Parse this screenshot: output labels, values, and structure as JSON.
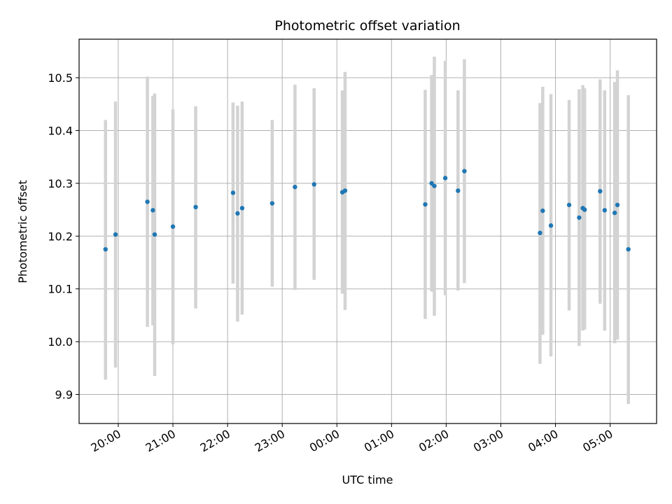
{
  "chart_data": {
    "type": "scatter",
    "title": "Photometric offset variation",
    "xlabel": "UTC time",
    "ylabel": "Photometric offset",
    "x_is_time": true,
    "xlim": [
      "19:17",
      "05:51"
    ],
    "ylim": [
      9.845,
      10.573
    ],
    "x_ticks": [
      "20:00",
      "21:00",
      "22:00",
      "23:00",
      "00:00",
      "01:00",
      "02:00",
      "03:00",
      "04:00",
      "05:00"
    ],
    "y_ticks": [
      9.9,
      10.0,
      10.1,
      10.2,
      10.3,
      10.4,
      10.5
    ],
    "y_tick_labels": [
      "9.9",
      "10.0",
      "10.1",
      "10.2",
      "10.3",
      "10.4",
      "10.5"
    ],
    "grid": true,
    "point_color": "#1f77b4",
    "errorbar_color": "#d3d3d3",
    "points": [
      {
        "x": "19:46",
        "y": 10.175,
        "y_low": 9.928,
        "y_high": 10.42
      },
      {
        "x": "19:57",
        "y": 10.203,
        "y_low": 9.951,
        "y_high": 10.455
      },
      {
        "x": "20:32",
        "y": 10.265,
        "y_low": 10.028,
        "y_high": 10.502
      },
      {
        "x": "20:38",
        "y": 10.249,
        "y_low": 10.031,
        "y_high": 10.466
      },
      {
        "x": "20:40",
        "y": 10.203,
        "y_low": 9.935,
        "y_high": 10.47
      },
      {
        "x": "21:00",
        "y": 10.218,
        "y_low": 9.995,
        "y_high": 10.44
      },
      {
        "x": "21:25",
        "y": 10.255,
        "y_low": 10.063,
        "y_high": 10.446
      },
      {
        "x": "22:06",
        "y": 10.282,
        "y_low": 10.11,
        "y_high": 10.453
      },
      {
        "x": "22:11",
        "y": 10.243,
        "y_low": 10.038,
        "y_high": 10.447
      },
      {
        "x": "22:16",
        "y": 10.253,
        "y_low": 10.051,
        "y_high": 10.455
      },
      {
        "x": "22:49",
        "y": 10.262,
        "y_low": 10.104,
        "y_high": 10.42
      },
      {
        "x": "23:14",
        "y": 10.293,
        "y_low": 10.098,
        "y_high": 10.487
      },
      {
        "x": "23:35",
        "y": 10.298,
        "y_low": 10.117,
        "y_high": 10.48
      },
      {
        "x": "00:06",
        "y": 10.283,
        "y_low": 10.091,
        "y_high": 10.476
      },
      {
        "x": "00:09",
        "y": 10.286,
        "y_low": 10.06,
        "y_high": 10.511
      },
      {
        "x": "01:37",
        "y": 10.26,
        "y_low": 10.043,
        "y_high": 10.477
      },
      {
        "x": "01:44",
        "y": 10.3,
        "y_low": 10.095,
        "y_high": 10.505
      },
      {
        "x": "01:47",
        "y": 10.295,
        "y_low": 10.049,
        "y_high": 10.54
      },
      {
        "x": "01:59",
        "y": 10.31,
        "y_low": 10.088,
        "y_high": 10.532
      },
      {
        "x": "02:13",
        "y": 10.286,
        "y_low": 10.097,
        "y_high": 10.476
      },
      {
        "x": "02:20",
        "y": 10.323,
        "y_low": 10.111,
        "y_high": 10.535
      },
      {
        "x": "03:43",
        "y": 10.206,
        "y_low": 9.958,
        "y_high": 10.452
      },
      {
        "x": "03:46",
        "y": 10.248,
        "y_low": 10.013,
        "y_high": 10.483
      },
      {
        "x": "03:55",
        "y": 10.22,
        "y_low": 9.972,
        "y_high": 10.469
      },
      {
        "x": "04:15",
        "y": 10.259,
        "y_low": 10.059,
        "y_high": 10.458
      },
      {
        "x": "04:26",
        "y": 10.235,
        "y_low": 9.992,
        "y_high": 10.478
      },
      {
        "x": "04:30",
        "y": 10.253,
        "y_low": 10.021,
        "y_high": 10.486
      },
      {
        "x": "04:32",
        "y": 10.25,
        "y_low": 10.023,
        "y_high": 10.48
      },
      {
        "x": "04:49",
        "y": 10.285,
        "y_low": 10.072,
        "y_high": 10.497
      },
      {
        "x": "04:54",
        "y": 10.249,
        "y_low": 10.021,
        "y_high": 10.476
      },
      {
        "x": "05:05",
        "y": 10.244,
        "y_low": 9.997,
        "y_high": 10.492
      },
      {
        "x": "05:08",
        "y": 10.259,
        "y_low": 10.004,
        "y_high": 10.514
      },
      {
        "x": "05:20",
        "y": 10.175,
        "y_low": 9.882,
        "y_high": 10.467
      }
    ]
  }
}
